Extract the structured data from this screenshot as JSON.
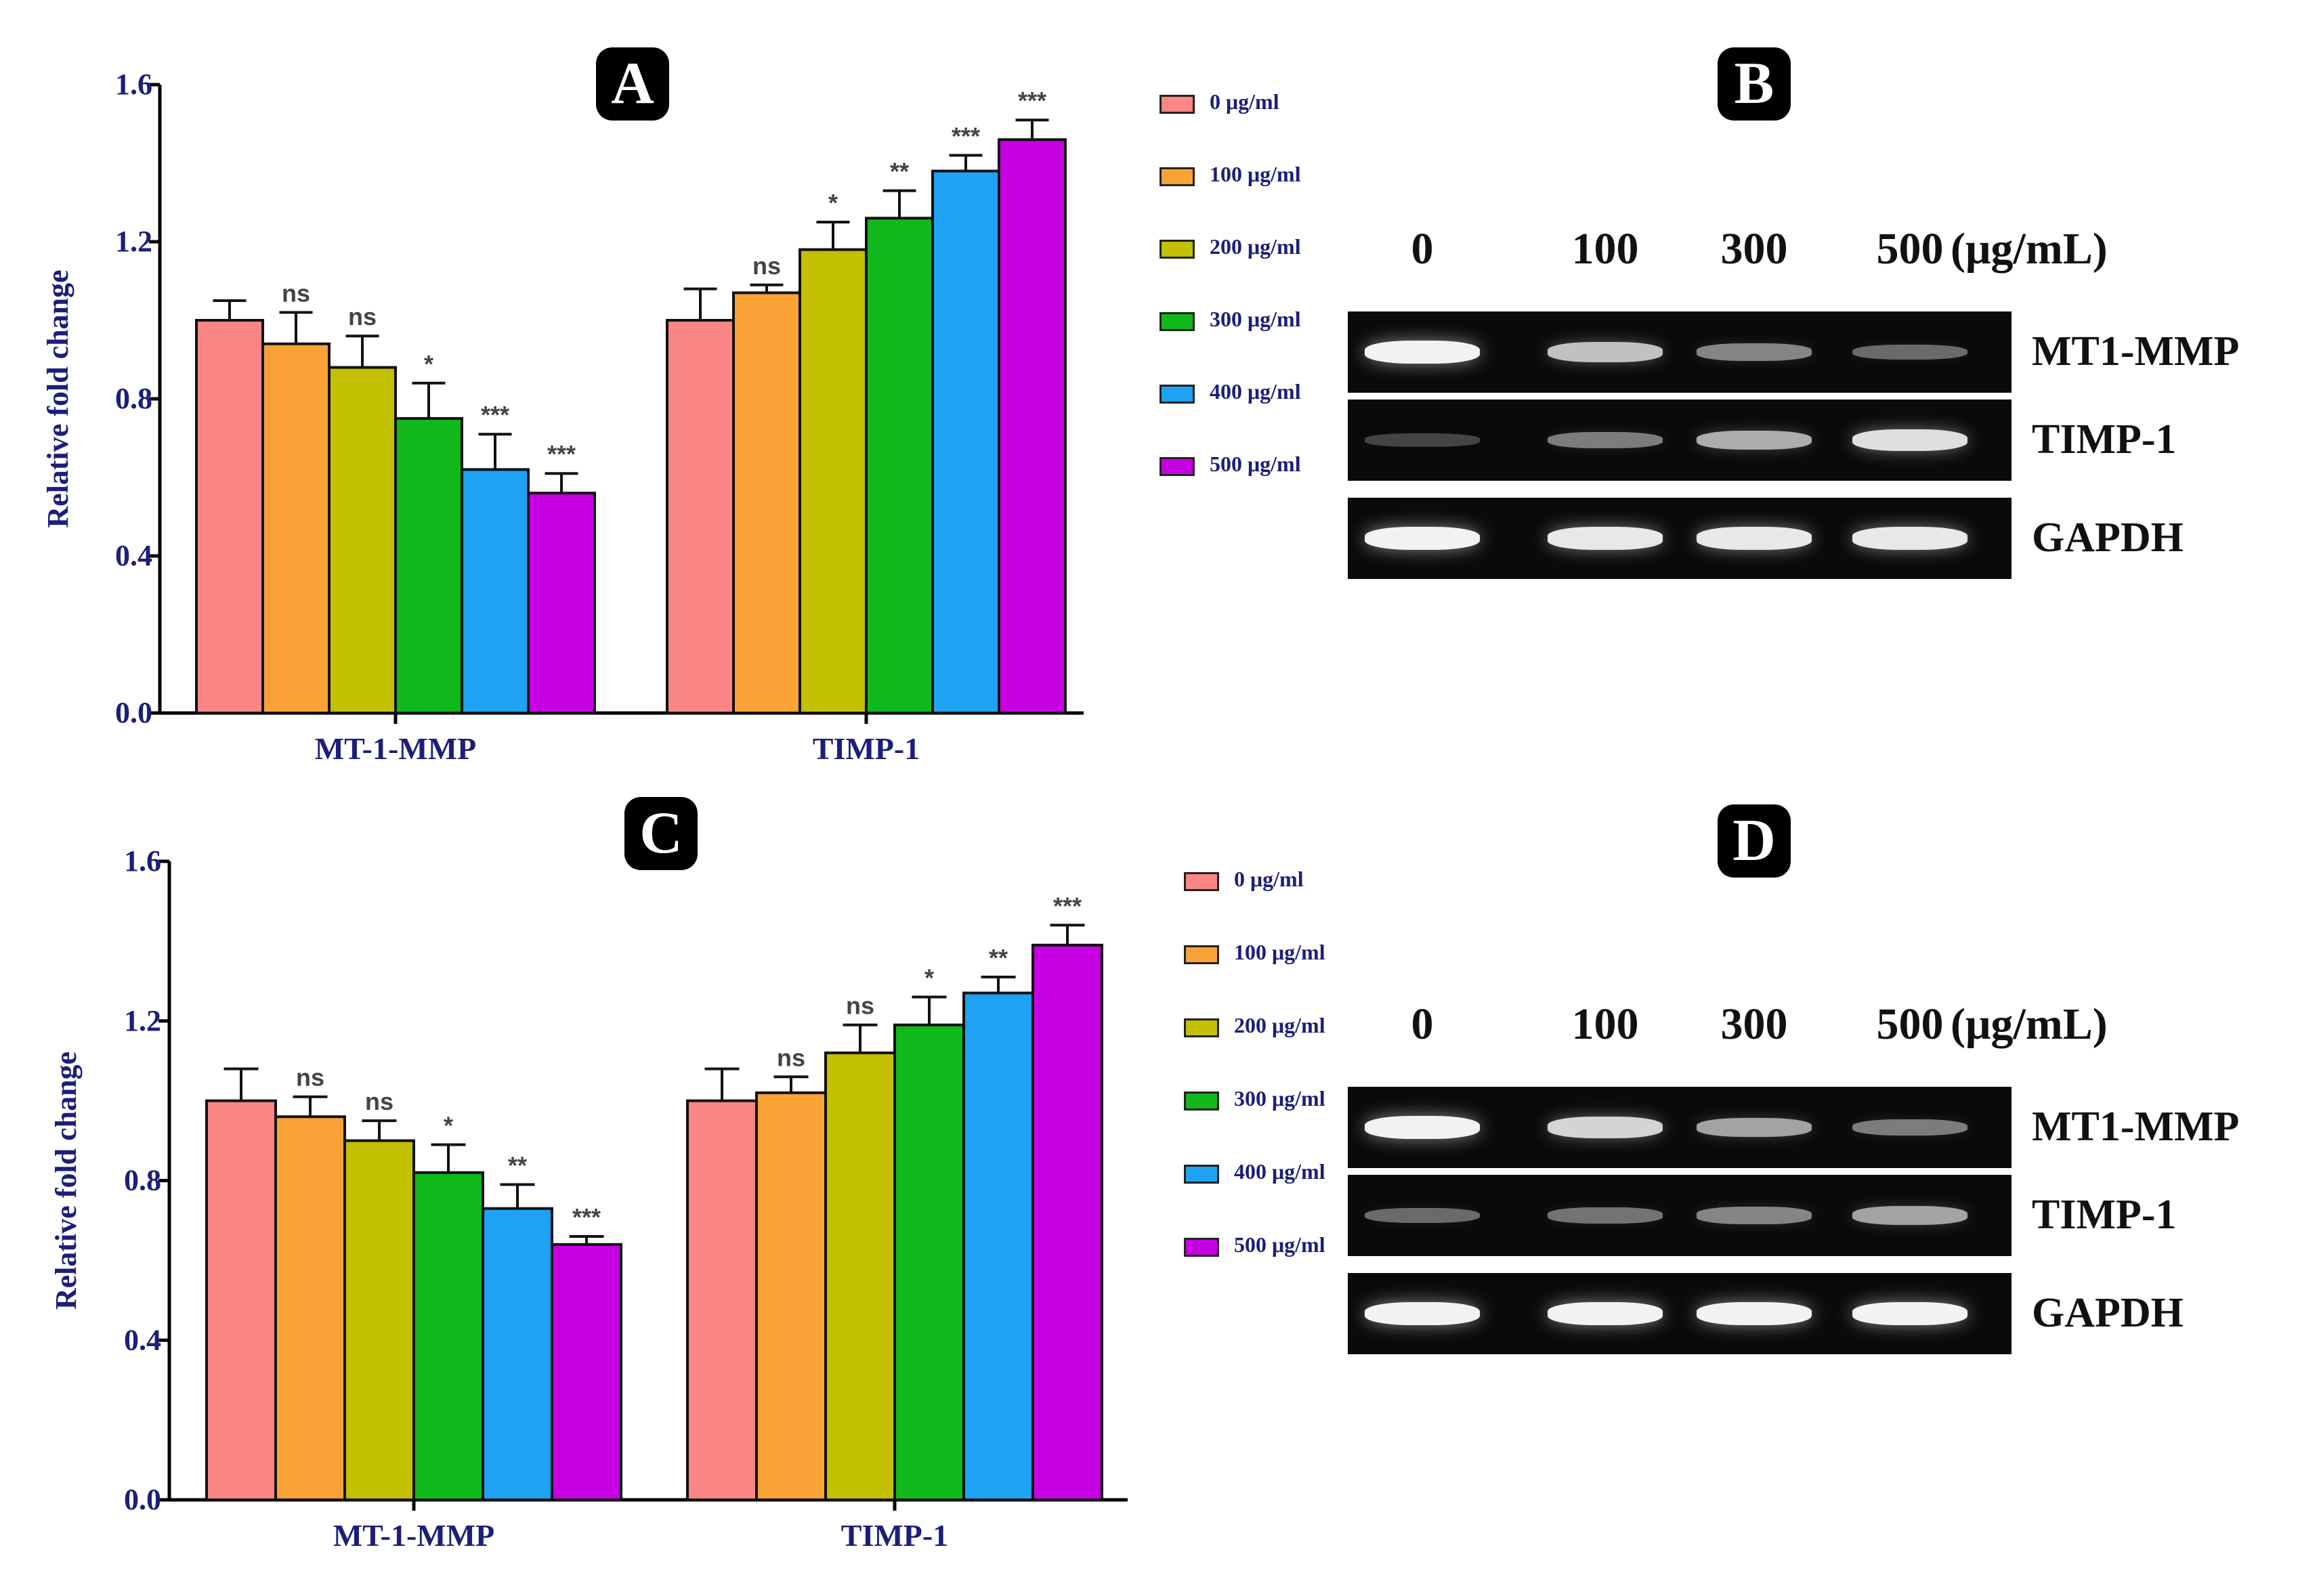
{
  "panels": {
    "a": "A",
    "b": "B",
    "c": "C",
    "d": "D"
  },
  "legend": {
    "entries": [
      {
        "label": "0 μg/ml",
        "color": "#fc8585"
      },
      {
        "label": "100 μg/ml",
        "color": "#f9a236"
      },
      {
        "label": "200 μg/ml",
        "color": "#c2c000"
      },
      {
        "label": "300 μg/ml",
        "color": "#10b81b"
      },
      {
        "label": "400 μg/ml",
        "color": "#1ea2f4"
      },
      {
        "label": "500 μg/ml",
        "color": "#c600e3"
      }
    ]
  },
  "gel_b": {
    "lanes": [
      "0",
      "100",
      "300",
      "500"
    ],
    "unit": "(μg/mL)",
    "genes": [
      "MT1-MMP",
      "TIMP-1",
      "GAPDH"
    ],
    "band_intensity": [
      [
        1.0,
        0.75,
        0.45,
        0.3
      ],
      [
        0.12,
        0.4,
        0.65,
        0.9
      ],
      [
        1.0,
        0.95,
        0.95,
        0.95
      ]
    ]
  },
  "gel_d": {
    "lanes": [
      "0",
      "100",
      "300",
      "500"
    ],
    "unit": "(μg/mL)",
    "genes": [
      "MT1-MMP",
      "TIMP-1",
      "GAPDH"
    ],
    "band_intensity": [
      [
        1.0,
        0.85,
        0.6,
        0.4
      ],
      [
        0.3,
        0.35,
        0.45,
        0.6
      ],
      [
        1.0,
        1.0,
        1.0,
        1.0
      ]
    ]
  },
  "chart_data": [
    {
      "type": "bar",
      "panel": "A",
      "title": "",
      "xlabel": "",
      "ylabel": "Relative fold change",
      "ylim": [
        0,
        1.6
      ],
      "yticks": [
        "0.0",
        "0.4",
        "0.8",
        "1.2",
        "1.6"
      ],
      "categories": [
        "MT-1-MMP",
        "TIMP-1"
      ],
      "series": [
        {
          "name": "0 μg/ml",
          "values": [
            1.0,
            1.0
          ],
          "errors": [
            0.05,
            0.08
          ],
          "sig": [
            "",
            ""
          ]
        },
        {
          "name": "100 μg/ml",
          "values": [
            0.94,
            1.07
          ],
          "errors": [
            0.08,
            0.02
          ],
          "sig": [
            "ns",
            "ns"
          ]
        },
        {
          "name": "200 μg/ml",
          "values": [
            0.88,
            1.18
          ],
          "errors": [
            0.08,
            0.07
          ],
          "sig": [
            "ns",
            "*"
          ]
        },
        {
          "name": "300 μg/ml",
          "values": [
            0.75,
            1.26
          ],
          "errors": [
            0.09,
            0.07
          ],
          "sig": [
            "*",
            "**"
          ]
        },
        {
          "name": "400 μg/ml",
          "values": [
            0.62,
            1.38
          ],
          "errors": [
            0.09,
            0.04
          ],
          "sig": [
            "***",
            "***"
          ]
        },
        {
          "name": "500 μg/ml",
          "values": [
            0.56,
            1.46
          ],
          "errors": [
            0.05,
            0.05
          ],
          "sig": [
            "***",
            "***"
          ]
        }
      ]
    },
    {
      "type": "bar",
      "panel": "C",
      "title": "",
      "xlabel": "",
      "ylabel": "Relative fold change",
      "ylim": [
        0,
        1.6
      ],
      "yticks": [
        "0.0",
        "0.4",
        "0.8",
        "1.2",
        "1.6"
      ],
      "categories": [
        "MT-1-MMP",
        "TIMP-1"
      ],
      "series": [
        {
          "name": "0 μg/ml",
          "values": [
            1.0,
            1.0
          ],
          "errors": [
            0.08,
            0.08
          ],
          "sig": [
            "",
            ""
          ]
        },
        {
          "name": "100 μg/ml",
          "values": [
            0.96,
            1.02
          ],
          "errors": [
            0.05,
            0.04
          ],
          "sig": [
            "ns",
            "ns"
          ]
        },
        {
          "name": "200 μg/ml",
          "values": [
            0.9,
            1.12
          ],
          "errors": [
            0.05,
            0.07
          ],
          "sig": [
            "ns",
            "ns"
          ]
        },
        {
          "name": "300 μg/ml",
          "values": [
            0.82,
            1.19
          ],
          "errors": [
            0.07,
            0.07
          ],
          "sig": [
            "*",
            "*"
          ]
        },
        {
          "name": "400 μg/ml",
          "values": [
            0.73,
            1.27
          ],
          "errors": [
            0.06,
            0.04
          ],
          "sig": [
            "**",
            "**"
          ]
        },
        {
          "name": "500 μg/ml",
          "values": [
            0.64,
            1.39
          ],
          "errors": [
            0.02,
            0.05
          ],
          "sig": [
            "***",
            "***"
          ]
        }
      ]
    }
  ]
}
